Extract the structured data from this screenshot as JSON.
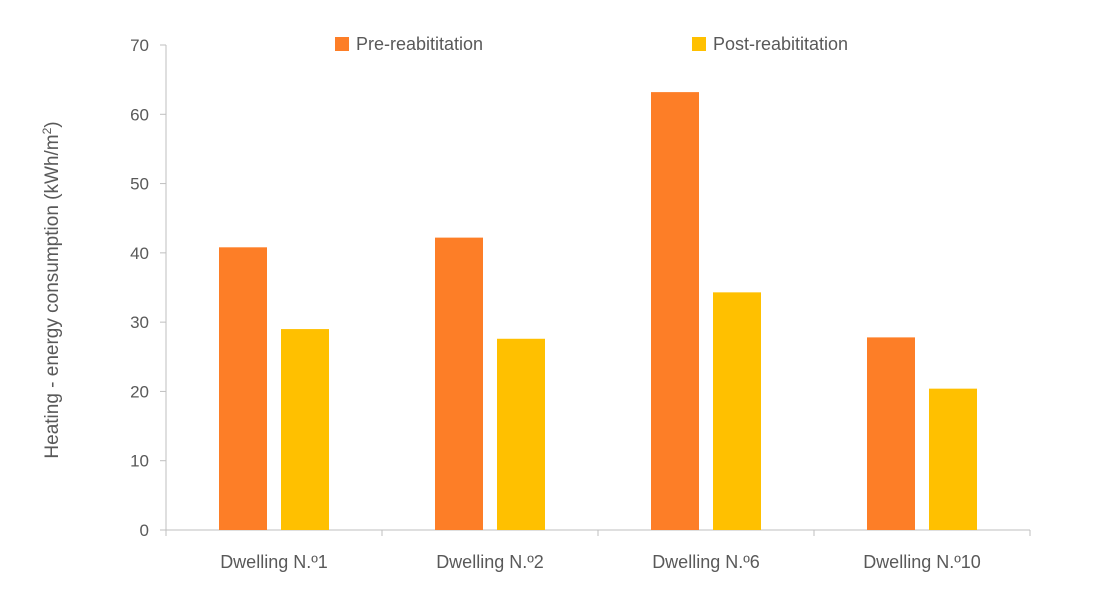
{
  "chart_data": {
    "type": "bar",
    "title": "",
    "xlabel": "",
    "ylabel": "Heating - energy consumption (kWh/m",
    "ylabel_superscript": "2",
    "ylabel_suffix": ")",
    "categories": [
      "Dwelling N.º1",
      "Dwelling N.º2",
      "Dwelling N.º6",
      "Dwelling N.º10"
    ],
    "series": [
      {
        "name": "Pre-reabititation",
        "color": "#fd7e27",
        "values": [
          40.8,
          42.2,
          63.2,
          27.8
        ]
      },
      {
        "name": "Post-reabititation",
        "color": "#ffc000",
        "values": [
          29.0,
          27.6,
          34.3,
          20.4
        ]
      }
    ],
    "ylim": [
      0,
      70
    ],
    "yticks": [
      0,
      10,
      20,
      30,
      40,
      50,
      60,
      70
    ],
    "grid": false,
    "legend_position": "top-center"
  },
  "colors": {
    "axis": "#bfbfbf",
    "text": "#595959"
  }
}
